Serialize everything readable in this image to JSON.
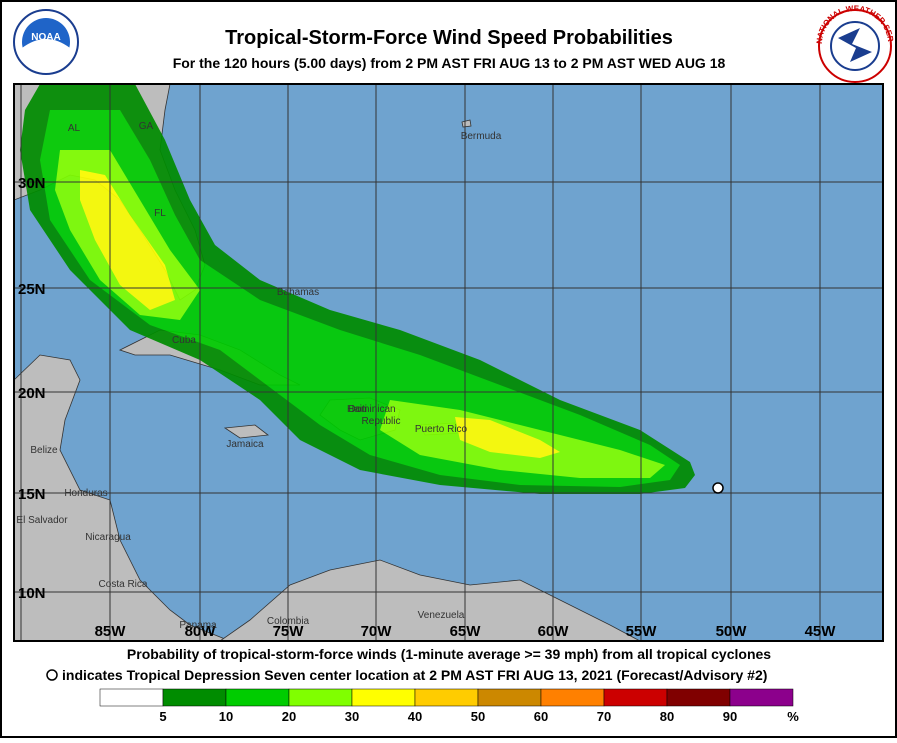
{
  "header": {
    "title": "Tropical-Storm-Force Wind Speed Probabilities",
    "subtitle": "For the 120 hours (5.00 days) from 2 PM AST FRI AUG 13 to 2 PM AST WED AUG 18"
  },
  "logos": {
    "noaa": "NOAA",
    "nws": "NATIONAL WEATHER SERVICE"
  },
  "map": {
    "lat_labels": [
      "30N",
      "25N",
      "20N",
      "15N",
      "10N"
    ],
    "lon_labels": [
      "85W",
      "80W",
      "75W",
      "70W",
      "65W",
      "60W",
      "55W",
      "50W",
      "45W"
    ],
    "places": [
      "AL",
      "GA",
      "FL",
      "Bermuda",
      "Bahamas",
      "Cuba",
      "Haiti",
      "Dominican",
      "Republic",
      "Puerto Rico",
      "Jamaica",
      "Belize",
      "Honduras",
      "El Salvador",
      "Nicaragua",
      "Costa Rica",
      "Panama",
      "Colombia",
      "Venezuela"
    ]
  },
  "footer": {
    "lines": [
      "Probability of tropical-storm-force winds (1-minute average >= 39 mph) from all tropical cyclones",
      "indicates Tropical Depression Seven center location at 2 PM AST FRI AUG 13, 2021 (Forecast/Advisory #2)"
    ]
  },
  "legend": {
    "colors": [
      "#ffffff",
      "#008c00",
      "#00cc00",
      "#80ff00",
      "#ffff00",
      "#ffcc00",
      "#cc8800",
      "#ff8000",
      "#cc0000",
      "#800000",
      "#8c008c"
    ],
    "labels": [
      "5",
      "10",
      "20",
      "30",
      "40",
      "50",
      "60",
      "70",
      "80",
      "90",
      "%"
    ]
  }
}
